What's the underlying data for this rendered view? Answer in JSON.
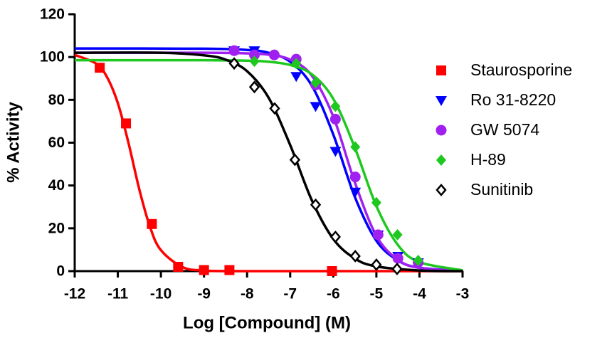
{
  "chart_data": {
    "type": "dose-response",
    "x_label": "Log [Compound] (M)",
    "y_label": "% Activity",
    "xlim": [
      -12,
      -3
    ],
    "xticks": [
      -12,
      -11,
      -10,
      -9,
      -8,
      -7,
      -6,
      -5,
      -4,
      -3
    ],
    "ylim": [
      0,
      120
    ],
    "yticks": [
      0,
      20,
      40,
      60,
      80,
      100,
      120
    ],
    "legend": "right",
    "series": [
      {
        "name": "Staurosporine",
        "color": "#ff0000",
        "marker": "square",
        "x": [
          -11.42,
          -10.81,
          -10.21,
          -9.6,
          -9.0,
          -8.41,
          -6.03
        ],
        "values": [
          95,
          69,
          22,
          2,
          0.5,
          0.5,
          0
        ],
        "fit_x": [
          -12,
          -11.5,
          -11.25,
          -11,
          -10.75,
          -10.5,
          -10.25,
          -10,
          -9.5,
          -9,
          -8,
          -3
        ],
        "fit_values": [
          101.0,
          96.9,
          90.6,
          78.5,
          59.7,
          38.1,
          20.5,
          9.8,
          1.9,
          0.3,
          0,
          0
        ]
      },
      {
        "name": "Ro 31-8220",
        "color": "#0000ff",
        "marker": "triangle-down",
        "x": [
          -8.3,
          -7.83,
          -6.86,
          -6.41,
          -5.95,
          -5.49,
          -4.96,
          -4.5,
          -4.03
        ],
        "values": [
          103,
          103,
          91,
          77,
          56,
          37,
          17,
          7,
          4
        ],
        "fit_x": [
          -12,
          -9,
          -8,
          -7.5,
          -7,
          -6.5,
          -6,
          -5.5,
          -5,
          -4.5,
          -4,
          -3
        ],
        "fit_values": [
          104,
          103.9,
          103.3,
          102.0,
          97.8,
          86.7,
          63.8,
          34.7,
          14.2,
          5.0,
          1.6,
          0.2
        ]
      },
      {
        "name": "GW 5074",
        "color": "#a020f0",
        "marker": "circle",
        "x": [
          -8.3,
          -7.83,
          -7.37,
          -6.86,
          -6.41,
          -5.95,
          -5.49,
          -4.96,
          -4.5,
          -4.03
        ],
        "values": [
          103,
          101,
          101,
          99,
          87,
          71,
          44,
          17,
          6,
          4
        ],
        "fit_x": [
          -12,
          -9,
          -8,
          -7.5,
          -7,
          -6.5,
          -6,
          -5.5,
          -5,
          -4.5,
          -4,
          -3
        ],
        "fit_values": [
          102,
          102,
          101.7,
          101.1,
          98.8,
          91.4,
          72.2,
          41.5,
          16.5,
          5.3,
          1.5,
          0.1
        ]
      },
      {
        "name": "H-89",
        "color": "#1ec81e",
        "marker": "diamond",
        "x": [
          -7.83,
          -6.86,
          -6.41,
          -5.95,
          -5.49,
          -5.0,
          -4.51,
          -4.03
        ],
        "values": [
          98,
          97,
          88,
          77,
          58,
          32,
          17,
          5
        ],
        "fit_x": [
          -12,
          -9,
          -8,
          -7.5,
          -7,
          -6.5,
          -6,
          -5.5,
          -5,
          -4.5,
          -4,
          -3
        ],
        "fit_values": [
          98.5,
          98.5,
          98.3,
          97.8,
          96.3,
          92.0,
          80.5,
          57.7,
          30.4,
          12.2,
          4.2,
          0.4
        ]
      },
      {
        "name": "Sunitinib",
        "color": "#000000",
        "marker": "open-diamond",
        "x": [
          -8.3,
          -7.83,
          -7.36,
          -6.89,
          -6.41,
          -5.95,
          -5.49,
          -5.0,
          -4.52
        ],
        "values": [
          97,
          86,
          76,
          52,
          31,
          16,
          7,
          3,
          1
        ],
        "fit_x": [
          -12,
          -10,
          -9,
          -8.5,
          -8,
          -7.5,
          -7,
          -6.5,
          -6,
          -5.5,
          -5,
          -4,
          -3
        ],
        "fit_values": [
          102,
          102,
          100.8,
          98.8,
          93.4,
          81,
          58.9,
          33.2,
          15.0,
          5.9,
          2.2,
          0.3,
          0
        ]
      }
    ]
  }
}
